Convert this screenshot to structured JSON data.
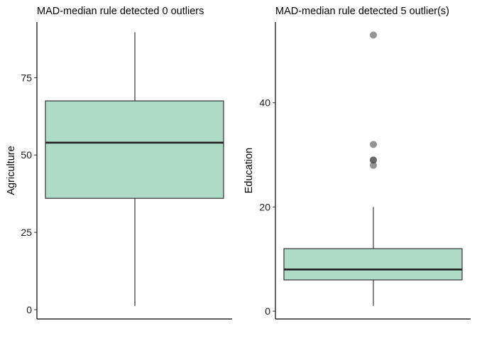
{
  "chart_data": [
    {
      "type": "boxplot",
      "title": "MAD-median rule detected 0 outliers",
      "xlabel": "",
      "ylabel": "Agriculture",
      "ylim": [
        -3,
        93
      ],
      "yticks": [
        0,
        25,
        50,
        75
      ],
      "box": {
        "min": 1.2,
        "q1": 36,
        "median": 54,
        "q3": 67.5,
        "max": 89.7
      },
      "outliers": [],
      "fill": "#aedbc5",
      "grid": false
    },
    {
      "type": "boxplot",
      "title": "MAD-median rule detected 5 outlier(s)",
      "xlabel": "",
      "ylabel": "Education",
      "ylim": [
        -1.5,
        55.5
      ],
      "yticks": [
        0,
        20,
        40
      ],
      "box": {
        "min": 1,
        "q1": 6,
        "median": 8,
        "q3": 12,
        "max": 20
      },
      "outliers": [
        28,
        29,
        29,
        32,
        53
      ],
      "fill": "#aedbc5",
      "outlier_color": "#4d4d4d",
      "grid": false
    }
  ]
}
